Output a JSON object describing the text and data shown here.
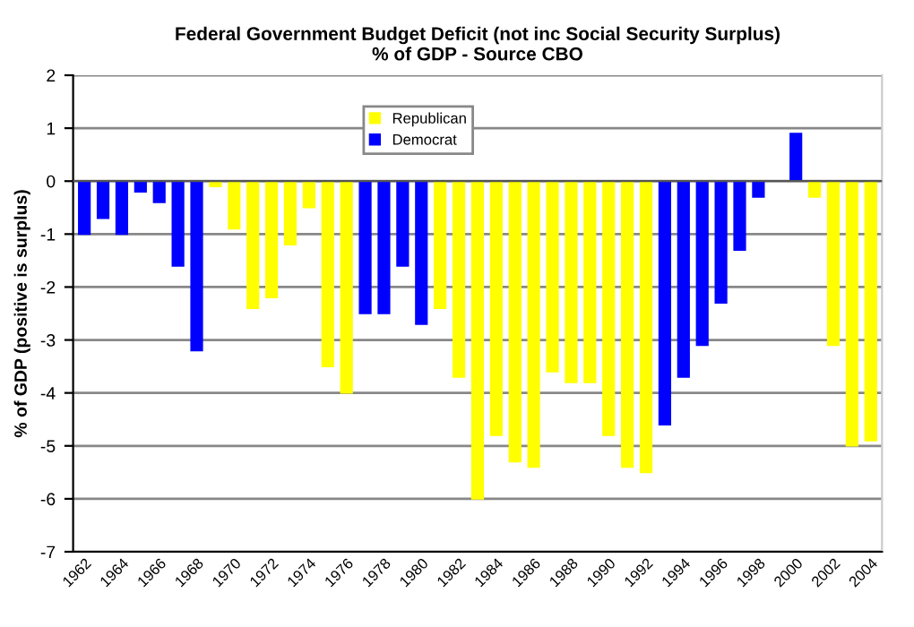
{
  "chart_data": {
    "type": "bar",
    "title": "Federal Government Budget Deficit (not inc Social Security Surplus)\n% of GDP - Source CBO",
    "ylabel": "% of GDP (positive is surplus)",
    "categories": [
      "1962",
      null,
      "1964",
      null,
      "1966",
      null,
      "1968",
      null,
      "1970",
      null,
      "1972",
      null,
      "1974",
      null,
      "1976",
      null,
      "1978",
      null,
      "1980",
      null,
      "1982",
      null,
      "1984",
      null,
      "1986",
      null,
      "1988",
      null,
      "1990",
      null,
      "1992",
      null,
      "1994",
      null,
      "1996",
      null,
      "1998",
      null,
      "2000",
      null,
      "2002",
      null,
      "2004"
    ],
    "series": [
      {
        "name": "Republican",
        "color": "#ffff00",
        "values": [
          null,
          null,
          null,
          null,
          null,
          null,
          null,
          -0.1,
          -0.9,
          -2.4,
          -2.2,
          -1.2,
          -0.5,
          -3.5,
          -4.0,
          null,
          null,
          null,
          null,
          -2.4,
          -3.7,
          -6.0,
          -4.8,
          -5.3,
          -5.4,
          -3.6,
          -3.8,
          -3.8,
          -4.8,
          -5.4,
          -5.5,
          null,
          null,
          null,
          null,
          null,
          null,
          null,
          null,
          -0.3,
          -3.1,
          -5.0,
          -4.9
        ]
      },
      {
        "name": "Democrat",
        "color": "#0000ff",
        "values": [
          -1.0,
          -0.7,
          -1.0,
          -0.2,
          -0.4,
          -1.6,
          -3.2,
          null,
          null,
          null,
          null,
          null,
          null,
          null,
          null,
          -2.5,
          -2.5,
          -1.6,
          -2.7,
          null,
          null,
          null,
          null,
          null,
          null,
          null,
          null,
          null,
          null,
          null,
          null,
          -4.6,
          -3.7,
          -3.1,
          -2.3,
          -1.3,
          -0.3,
          0,
          0.9,
          null,
          null,
          null,
          null
        ]
      }
    ],
    "ylim": [
      -7,
      2
    ],
    "yticks": [
      -7,
      -6,
      -5,
      -4,
      -3,
      -2,
      -1,
      0,
      1,
      2
    ],
    "grid": "y",
    "legend": "top left"
  }
}
